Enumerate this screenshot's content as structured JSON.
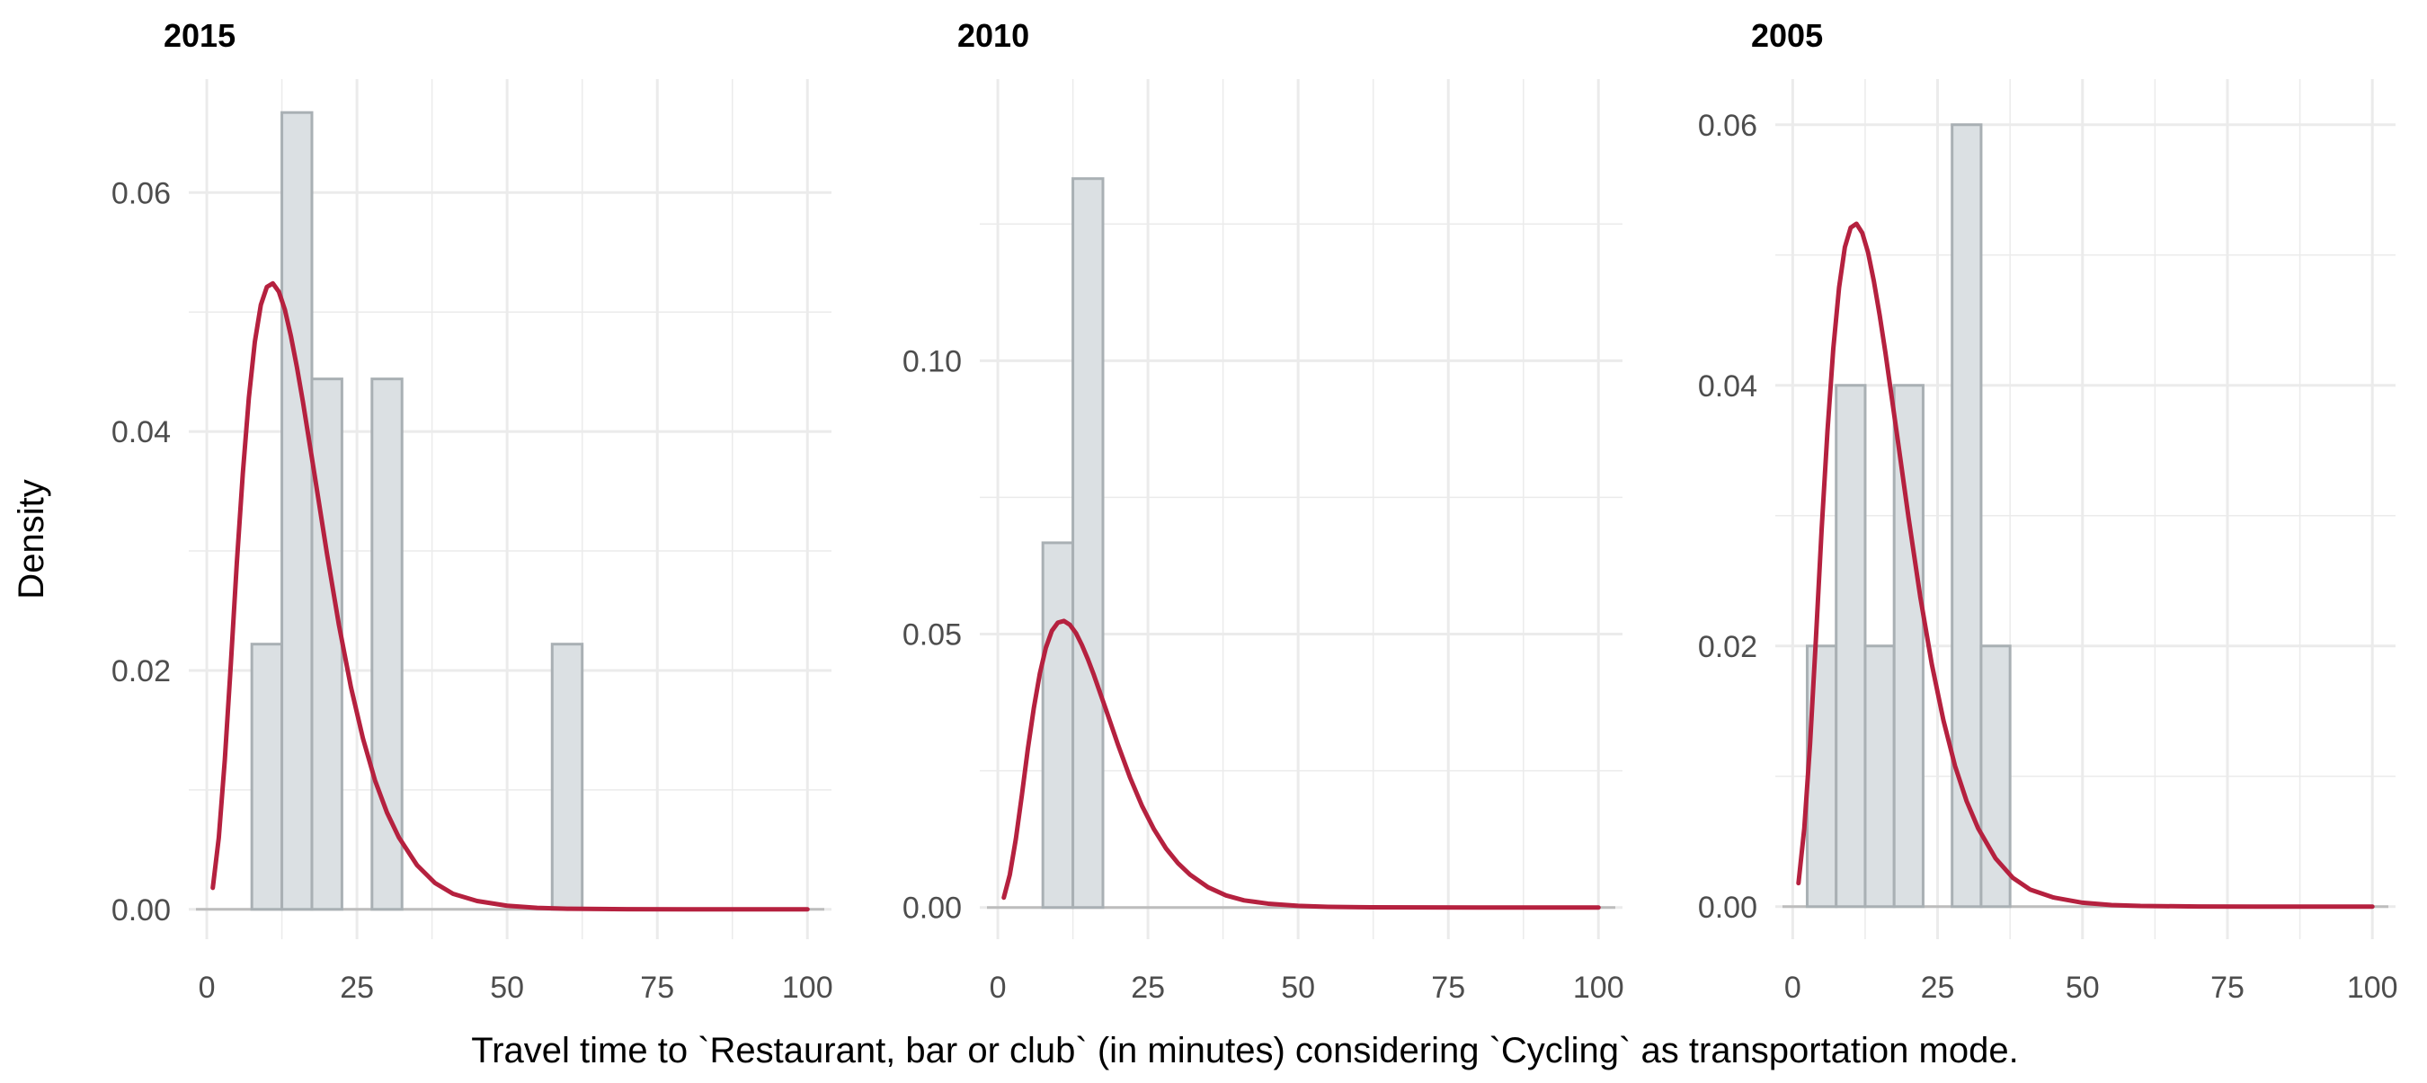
{
  "chart_data": {
    "type": "histogram",
    "ylabel": "Density",
    "xlabel": "Travel time to `Restaurant, bar or club` (in minutes) considering `Cycling` as transportation mode.",
    "colors": {
      "bar_fill": "#dbe0e3",
      "bar_stroke": "#a9b0b4",
      "curve": "#b5213f",
      "grid": "#ebebeb",
      "baseline": "#bdbdbd"
    },
    "panels": [
      {
        "title": "2015",
        "xlim": [
          -3,
          104
        ],
        "ylim": [
          -0.0025,
          0.0695
        ],
        "x_ticks": [
          0,
          25,
          50,
          75,
          100
        ],
        "y_ticks": [
          0.0,
          0.02,
          0.04,
          0.06
        ],
        "y_tick_labels": [
          "0.00",
          "0.02",
          "0.04",
          "0.06"
        ],
        "bins": [
          {
            "x0": 7.5,
            "x1": 12.5,
            "density": 0.0222
          },
          {
            "x0": 12.5,
            "x1": 17.5,
            "density": 0.0667
          },
          {
            "x0": 17.5,
            "x1": 22.5,
            "density": 0.0444
          },
          {
            "x0": 27.5,
            "x1": 32.5,
            "density": 0.0444
          },
          {
            "x0": 57.5,
            "x1": 62.5,
            "density": 0.0222
          }
        ],
        "curve": {
          "x": [
            1,
            2,
            3,
            4,
            5,
            6,
            7,
            8,
            9,
            10,
            11,
            12,
            13,
            14,
            15,
            16,
            18,
            20,
            22,
            24,
            26,
            28,
            30,
            32,
            35,
            38,
            41,
            45,
            50,
            55,
            60,
            70,
            80,
            90,
            100
          ],
          "y": [
            0.0018,
            0.006,
            0.0125,
            0.0205,
            0.029,
            0.0365,
            0.0428,
            0.0475,
            0.0506,
            0.0521,
            0.0524,
            0.0517,
            0.0502,
            0.048,
            0.0454,
            0.0425,
            0.0362,
            0.0298,
            0.0238,
            0.0186,
            0.0143,
            0.0108,
            0.0081,
            0.006,
            0.0037,
            0.0022,
            0.0013,
            0.0007,
            0.0003,
            0.00012,
            5e-05,
            1e-05,
            0.0,
            0.0,
            0.0
          ]
        }
      },
      {
        "title": "2010",
        "xlim": [
          -3,
          104
        ],
        "ylim": [
          -0.0058,
          0.1515
        ],
        "x_ticks": [
          0,
          25,
          50,
          75,
          100
        ],
        "y_ticks": [
          0.0,
          0.05,
          0.1
        ],
        "y_tick_labels": [
          "0.00",
          "0.05",
          "0.10"
        ],
        "bins": [
          {
            "x0": 7.5,
            "x1": 12.5,
            "density": 0.0667
          },
          {
            "x0": 12.5,
            "x1": 17.5,
            "density": 0.1333
          }
        ],
        "curve": {
          "x": [
            1,
            2,
            3,
            4,
            5,
            6,
            7,
            8,
            9,
            10,
            11,
            12,
            13,
            14,
            15,
            16,
            18,
            20,
            22,
            24,
            26,
            28,
            30,
            32,
            35,
            38,
            41,
            45,
            50,
            55,
            60,
            70,
            80,
            90,
            100
          ],
          "y": [
            0.0018,
            0.006,
            0.0125,
            0.0205,
            0.029,
            0.0365,
            0.0428,
            0.0475,
            0.0506,
            0.0521,
            0.0524,
            0.0517,
            0.0502,
            0.048,
            0.0454,
            0.0425,
            0.0362,
            0.0298,
            0.0238,
            0.0186,
            0.0143,
            0.0108,
            0.0081,
            0.006,
            0.0037,
            0.0022,
            0.0013,
            0.0007,
            0.0003,
            0.00012,
            5e-05,
            1e-05,
            0.0,
            0.0,
            0.0
          ]
        }
      },
      {
        "title": "2005",
        "xlim": [
          -3,
          104
        ],
        "ylim": [
          -0.0025,
          0.0635
        ],
        "x_ticks": [
          0,
          25,
          50,
          75,
          100
        ],
        "y_ticks": [
          0.0,
          0.02,
          0.04,
          0.06
        ],
        "y_tick_labels": [
          "0.00",
          "0.02",
          "0.04",
          "0.06"
        ],
        "bins": [
          {
            "x0": 2.5,
            "x1": 7.5,
            "density": 0.02
          },
          {
            "x0": 7.5,
            "x1": 12.5,
            "density": 0.04
          },
          {
            "x0": 12.5,
            "x1": 17.5,
            "density": 0.02
          },
          {
            "x0": 17.5,
            "x1": 22.5,
            "density": 0.04
          },
          {
            "x0": 27.5,
            "x1": 32.5,
            "density": 0.06
          },
          {
            "x0": 32.5,
            "x1": 37.5,
            "density": 0.02
          }
        ],
        "curve": {
          "x": [
            1,
            2,
            3,
            4,
            5,
            6,
            7,
            8,
            9,
            10,
            11,
            12,
            13,
            14,
            15,
            16,
            18,
            20,
            22,
            24,
            26,
            28,
            30,
            32,
            35,
            38,
            41,
            45,
            50,
            55,
            60,
            70,
            80,
            90,
            100
          ],
          "y": [
            0.0018,
            0.006,
            0.0125,
            0.0205,
            0.029,
            0.0365,
            0.0428,
            0.0475,
            0.0506,
            0.0521,
            0.0524,
            0.0517,
            0.0502,
            0.048,
            0.0454,
            0.0425,
            0.0362,
            0.0298,
            0.0238,
            0.0186,
            0.0143,
            0.0108,
            0.0081,
            0.006,
            0.0037,
            0.0022,
            0.0013,
            0.0007,
            0.0003,
            0.00012,
            5e-05,
            1e-05,
            0.0,
            0.0,
            0.0
          ]
        }
      }
    ]
  }
}
